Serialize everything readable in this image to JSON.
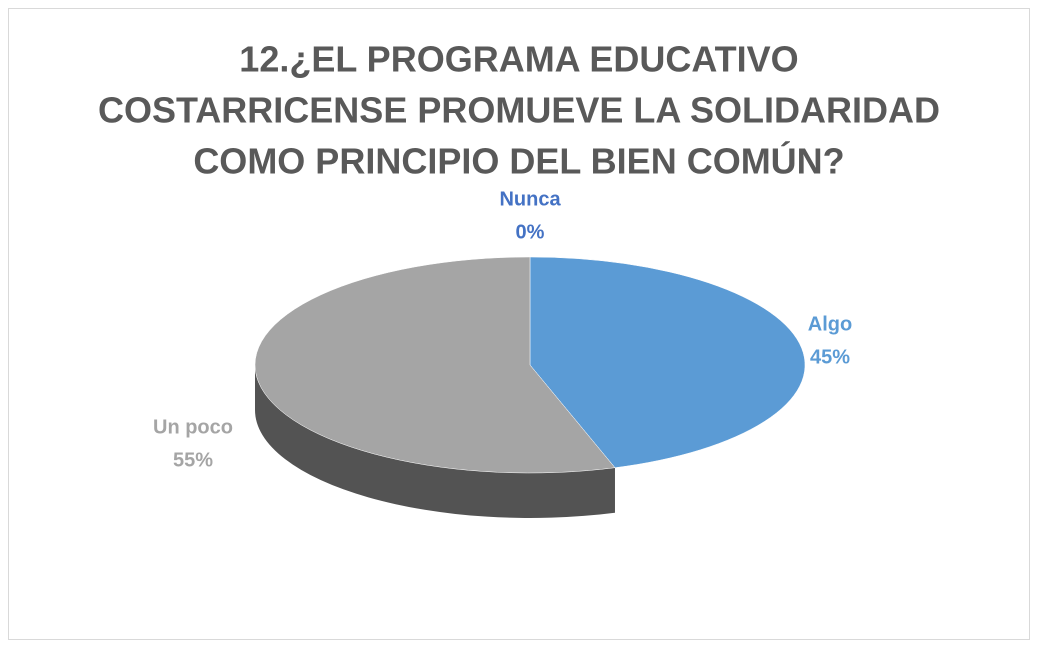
{
  "chart_data": {
    "type": "pie",
    "title": [
      "12.¿EL PROGRAMA EDUCATIVO",
      "COSTARRICENSE PROMUEVE LA SOLIDARIDAD",
      "COMO PRINCIPIO DEL BIEN COMÚN?"
    ],
    "categories": [
      "Nunca",
      "Algo",
      "Un poco"
    ],
    "values": [
      0,
      45,
      55
    ],
    "value_labels": [
      "0%",
      "45%",
      "55%"
    ],
    "colors": [
      "#4472c4",
      "#5b9bd5",
      "#a5a5a5"
    ]
  }
}
